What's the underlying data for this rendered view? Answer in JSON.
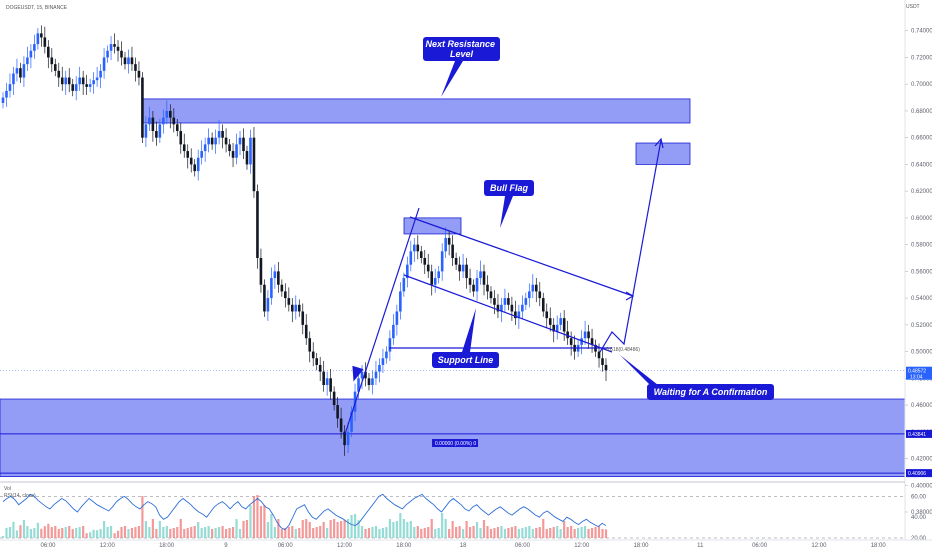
{
  "header": {
    "symbol_label": "DOGEUSDT, 15, BINANCE",
    "currency": "USDT"
  },
  "colors": {
    "up": "#2962ff",
    "down": "#131722",
    "zone_fill": "#6f7cf2",
    "zone_stroke": "#1a1fd6",
    "callout_bg": "#1a1ad6",
    "rsi": "#2f6fd8",
    "vol_up": "#7bd3cc",
    "vol_down": "#f08080"
  },
  "chart_data": {
    "type": "candlestick",
    "ylim": [
      0.38,
      0.76
    ],
    "y_ticks": [
      "0.74000",
      "0.72000",
      "0.70000",
      "0.68000",
      "0.66000",
      "0.64000",
      "0.62000",
      "0.60000",
      "0.58000",
      "0.56000",
      "0.54000",
      "0.52000",
      "0.50000",
      "0.48000",
      "0.46000",
      "0.44000",
      "0.42000",
      "0.40000",
      "0.38000"
    ],
    "x_ticks": [
      "06:00",
      "12:00",
      "18:00",
      "9",
      "06:00",
      "12:00",
      "18:00",
      "18",
      "06:00",
      "12:00",
      "18:00",
      "11",
      "06:00",
      "12:00",
      "18:00"
    ],
    "price_tags": [
      {
        "value": "0.48572",
        "price": 0.4857,
        "sub": "13:04"
      },
      {
        "value": "0.43841",
        "price": 0.4384
      },
      {
        "value": "0.40906",
        "price": 0.4091
      }
    ],
    "candles": [
      0.69,
      0.695,
      0.7,
      0.708,
      0.712,
      0.705,
      0.715,
      0.72,
      0.725,
      0.73,
      0.738,
      0.735,
      0.728,
      0.72,
      0.715,
      0.71,
      0.705,
      0.7,
      0.705,
      0.7,
      0.695,
      0.7,
      0.705,
      0.7,
      0.698,
      0.7,
      0.703,
      0.705,
      0.71,
      0.72,
      0.725,
      0.73,
      0.728,
      0.725,
      0.72,
      0.715,
      0.72,
      0.715,
      0.71,
      0.705,
      0.66,
      0.67,
      0.675,
      0.665,
      0.66,
      0.67,
      0.675,
      0.68,
      0.675,
      0.67,
      0.665,
      0.655,
      0.65,
      0.645,
      0.64,
      0.635,
      0.645,
      0.65,
      0.655,
      0.66,
      0.655,
      0.66,
      0.665,
      0.66,
      0.655,
      0.65,
      0.645,
      0.655,
      0.66,
      0.65,
      0.64,
      0.66,
      0.62,
      0.57,
      0.55,
      0.53,
      0.54,
      0.555,
      0.56,
      0.55,
      0.545,
      0.54,
      0.535,
      0.53,
      0.535,
      0.53,
      0.52,
      0.51,
      0.5,
      0.495,
      0.49,
      0.485,
      0.475,
      0.48,
      0.47,
      0.46,
      0.45,
      0.44,
      0.43,
      0.44,
      0.455,
      0.47,
      0.48,
      0.485,
      0.48,
      0.475,
      0.48,
      0.485,
      0.49,
      0.495,
      0.5,
      0.51,
      0.52,
      0.53,
      0.545,
      0.555,
      0.565,
      0.575,
      0.58,
      0.575,
      0.57,
      0.565,
      0.56,
      0.55,
      0.555,
      0.56,
      0.575,
      0.585,
      0.58,
      0.57,
      0.565,
      0.56,
      0.565,
      0.555,
      0.55,
      0.545,
      0.555,
      0.56,
      0.55,
      0.545,
      0.54,
      0.535,
      0.53,
      0.535,
      0.54,
      0.535,
      0.53,
      0.525,
      0.53,
      0.535,
      0.54,
      0.545,
      0.55,
      0.545,
      0.54,
      0.53,
      0.525,
      0.52,
      0.515,
      0.52,
      0.525,
      0.515,
      0.51,
      0.505,
      0.5,
      0.505,
      0.51,
      0.515,
      0.51,
      0.505,
      0.5,
      0.495,
      0.49,
      0.486
    ],
    "zones": [
      {
        "name": "next-resistance-zone",
        "y_top": 0.689,
        "y_bottom": 0.671
      },
      {
        "name": "target-zone",
        "y_top": 0.656,
        "y_bottom": 0.64
      },
      {
        "name": "flag-top-zone",
        "y_top": 0.6,
        "y_bottom": 0.588
      },
      {
        "name": "support-zone",
        "y_top": 0.4645,
        "y_bottom": 0.4065
      }
    ],
    "fib_labels": [
      "0.618(0.48486)",
      "0.00000 (0.00%) 0"
    ],
    "annotations": {
      "resistance": "Next Resistance Level",
      "bull_flag": "Bull Flag",
      "support": "Support Line",
      "waiting": "Waiting for A Confirmation"
    },
    "rsi": {
      "label": "RSI(14, close)",
      "vol_label": "Vol",
      "levels": [
        "60.00",
        "40.00",
        "20.00"
      ],
      "ylim": [
        20,
        70
      ],
      "values": [
        55,
        58,
        60,
        57,
        52,
        55,
        58,
        62,
        60,
        56,
        53,
        50,
        48,
        52,
        55,
        58,
        56,
        52,
        48,
        45,
        50,
        54,
        58,
        55,
        52,
        50,
        48,
        46,
        50,
        55,
        58,
        60,
        57,
        53,
        50,
        48,
        52,
        55,
        53,
        50,
        42,
        38,
        40,
        45,
        50,
        55,
        58,
        55,
        52,
        48,
        45,
        43,
        40,
        45,
        50,
        53,
        55,
        52,
        48,
        52,
        55,
        50,
        48,
        52,
        55,
        58,
        55,
        50,
        48,
        42,
        35,
        30,
        28,
        32,
        40,
        48,
        50,
        52,
        45,
        40,
        38,
        42,
        46,
        48,
        45,
        42,
        40,
        38,
        35,
        33,
        32,
        35,
        40,
        45,
        50,
        55,
        60,
        62,
        58,
        55,
        52,
        50,
        48,
        52,
        55,
        58,
        60,
        62,
        58,
        55,
        52,
        48,
        45,
        50,
        55,
        58,
        55,
        52,
        48,
        46,
        50,
        52,
        48,
        45,
        42,
        45,
        48,
        50,
        47,
        44,
        42,
        45,
        48,
        50,
        48,
        45,
        42,
        40,
        44,
        46,
        43,
        40,
        38,
        36,
        40,
        38,
        35,
        33,
        36,
        38,
        35,
        33,
        31,
        34,
        32
      ]
    }
  }
}
